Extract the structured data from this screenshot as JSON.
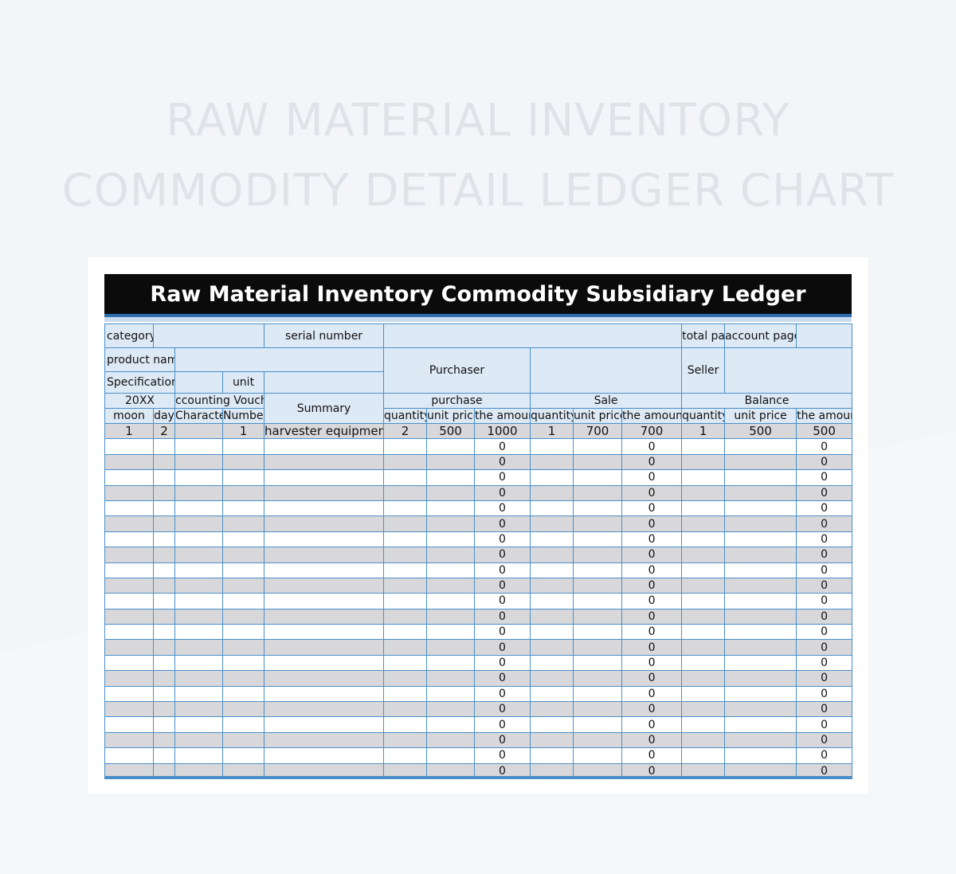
{
  "title_lines": [
    "RAW MATERIAL INVENTORY",
    "COMMODITY DETAIL LEDGER CHART"
  ],
  "ledger_title": "Raw Material Inventory Commodity Subsidiary Ledger",
  "labels": {
    "category": "category",
    "serial_number": "serial number",
    "total_pages": "total pages",
    "account_page": "account page",
    "product_name": "product name",
    "purchaser": "Purchaser",
    "seller": "Seller",
    "specification": "Specification",
    "unit": "unit",
    "year": "20XX",
    "accounting_voucher": "ccounting Vouche",
    "summary": "Summary",
    "purchase": "purchase",
    "sale": "Sale",
    "balance": "Balance",
    "moon": "moon",
    "day": "day",
    "character": "Character",
    "number": "Number",
    "quantity": "quantity",
    "unit_price": "unit price",
    "the_amount": "the amount"
  },
  "first_row": {
    "moon": "1",
    "day": "2",
    "character": "",
    "number": "1",
    "summary": "harvester equipment",
    "purchase_quantity": "2",
    "purchase_unit_price": "500",
    "purchase_amount": "1000",
    "sale_quantity": "1",
    "sale_unit_price": "700",
    "sale_amount": "700",
    "balance_quantity": "1",
    "balance_unit_price": "500",
    "balance_amount": "500"
  },
  "empty_row_amount": "0",
  "empty_row_count": 22,
  "colors": {
    "header_fill": "#dde9f5",
    "grid_line": "#4a8fc9",
    "stripe_fill": "#d8d8da",
    "title_bar": "#0b0b0c"
  }
}
